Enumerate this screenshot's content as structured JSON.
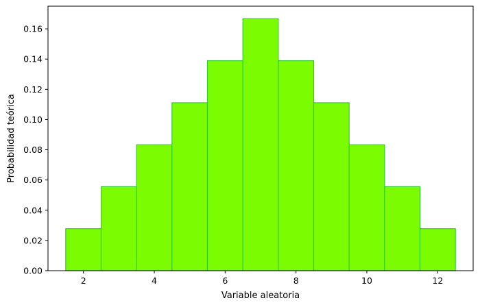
{
  "chart_data": {
    "type": "bar",
    "title": "",
    "xlabel": "Variable aleatoria",
    "ylabel": "Probabilidad teórica",
    "x": [
      2,
      3,
      4,
      5,
      6,
      7,
      8,
      9,
      10,
      11,
      12
    ],
    "values": [
      0.0278,
      0.0556,
      0.0833,
      0.1111,
      0.1389,
      0.1667,
      0.1389,
      0.1111,
      0.0833,
      0.0556,
      0.0278
    ],
    "bar_width": 1,
    "xlim": [
      1.0,
      13.0
    ],
    "ylim": [
      0,
      0.175
    ],
    "xticks": [
      2,
      4,
      6,
      8,
      10,
      12
    ],
    "xtick_labels": [
      "2",
      "4",
      "6",
      "8",
      "10",
      "12"
    ],
    "yticks": [
      0,
      0.02,
      0.04,
      0.06,
      0.08,
      0.1,
      0.12,
      0.14,
      0.16
    ],
    "ytick_labels": [
      "0.00",
      "0.02",
      "0.04",
      "0.06",
      "0.08",
      "0.10",
      "0.12",
      "0.14",
      "0.16"
    ],
    "grid": false,
    "bar_color": "#7cfc00",
    "edge_color": "#32cd32"
  }
}
